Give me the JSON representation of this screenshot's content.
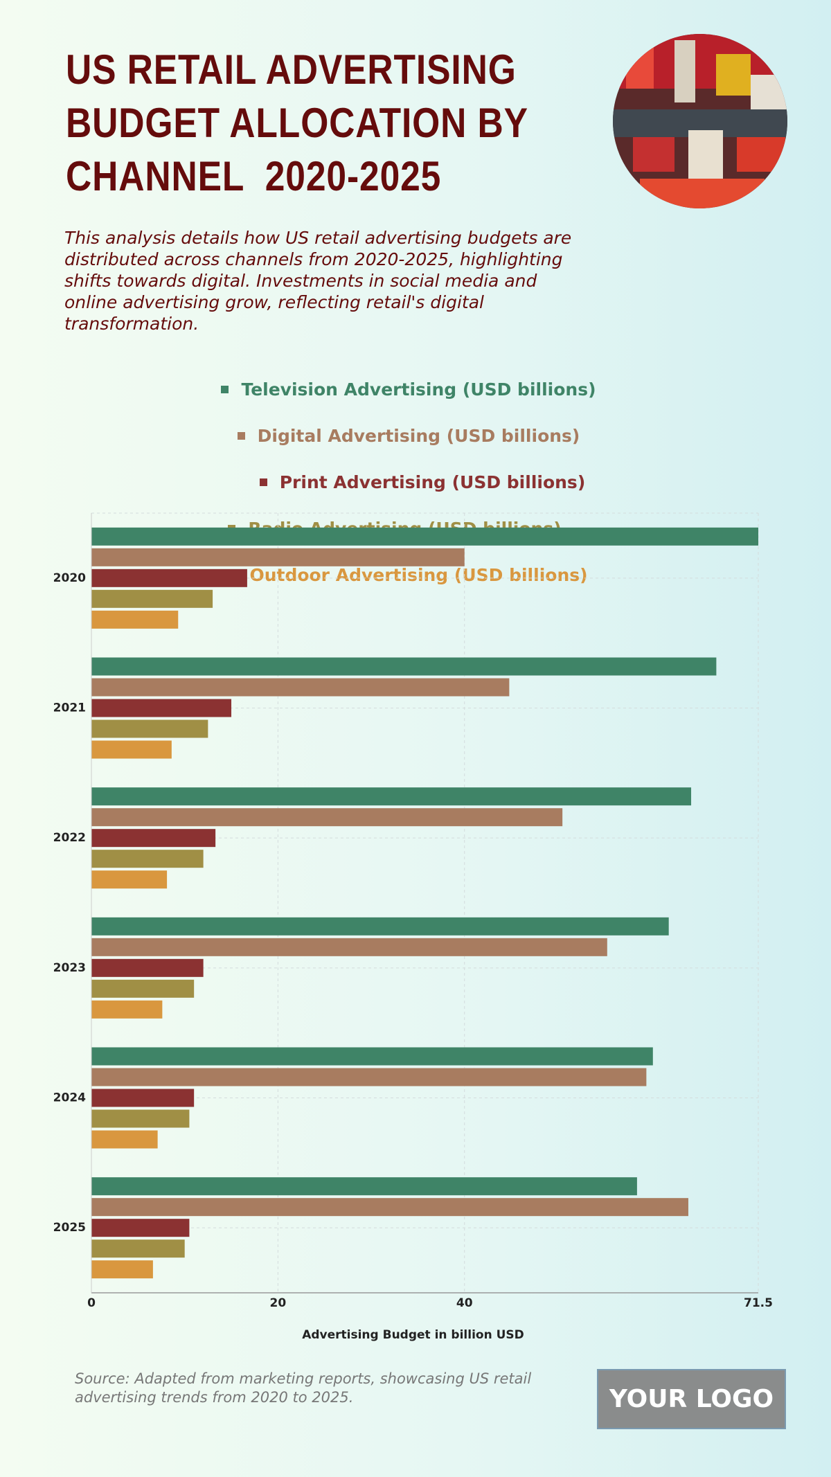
{
  "chart_data": {
    "type": "bar",
    "orientation": "horizontal",
    "title_lines": [
      "US RETAIL ADVERTISING",
      "BUDGET ALLOCATION BY",
      "CHANNEL  2020-2025"
    ],
    "subtitle": "This analysis details how US retail advertising budgets are distributed across channels from 2020-2025, highlighting shifts towards digital. Investments in social media and online advertising grow, reflecting retail's digital transformation.",
    "categories": [
      "2020",
      "2021",
      "2022",
      "2023",
      "2024",
      "2025"
    ],
    "series": [
      {
        "name": "Television Advertising (USD billions)",
        "color": "#3f8467",
        "values": [
          71.5,
          67.0,
          64.3,
          61.9,
          60.2,
          58.5
        ]
      },
      {
        "name": "Digital Advertising (USD billions)",
        "color": "#a87c60",
        "values": [
          40.0,
          44.8,
          50.5,
          55.3,
          59.5,
          64.0
        ]
      },
      {
        "name": "Print Advertising (USD billions)",
        "color": "#8b3232",
        "values": [
          16.7,
          15.0,
          13.3,
          12.0,
          11.0,
          10.5
        ]
      },
      {
        "name": "Radio Advertising (USD billions)",
        "color": "#a08f45",
        "values": [
          13.0,
          12.5,
          12.0,
          11.0,
          10.5,
          10.0
        ]
      },
      {
        "name": "Outdoor Advertising (USD billions)",
        "color": "#d9973f",
        "values": [
          9.3,
          8.6,
          8.1,
          7.6,
          7.1,
          6.6
        ]
      }
    ],
    "xlim": [
      0,
      71.5
    ],
    "xticks": [
      0,
      20,
      40,
      71.5
    ],
    "xlabel": "Advertising Budget in billion USD",
    "grid": true,
    "source": "Source: Adapted from marketing reports, showcasing US retail advertising trends from 2020 to 2025.",
    "logo": "YOUR LOGO"
  }
}
